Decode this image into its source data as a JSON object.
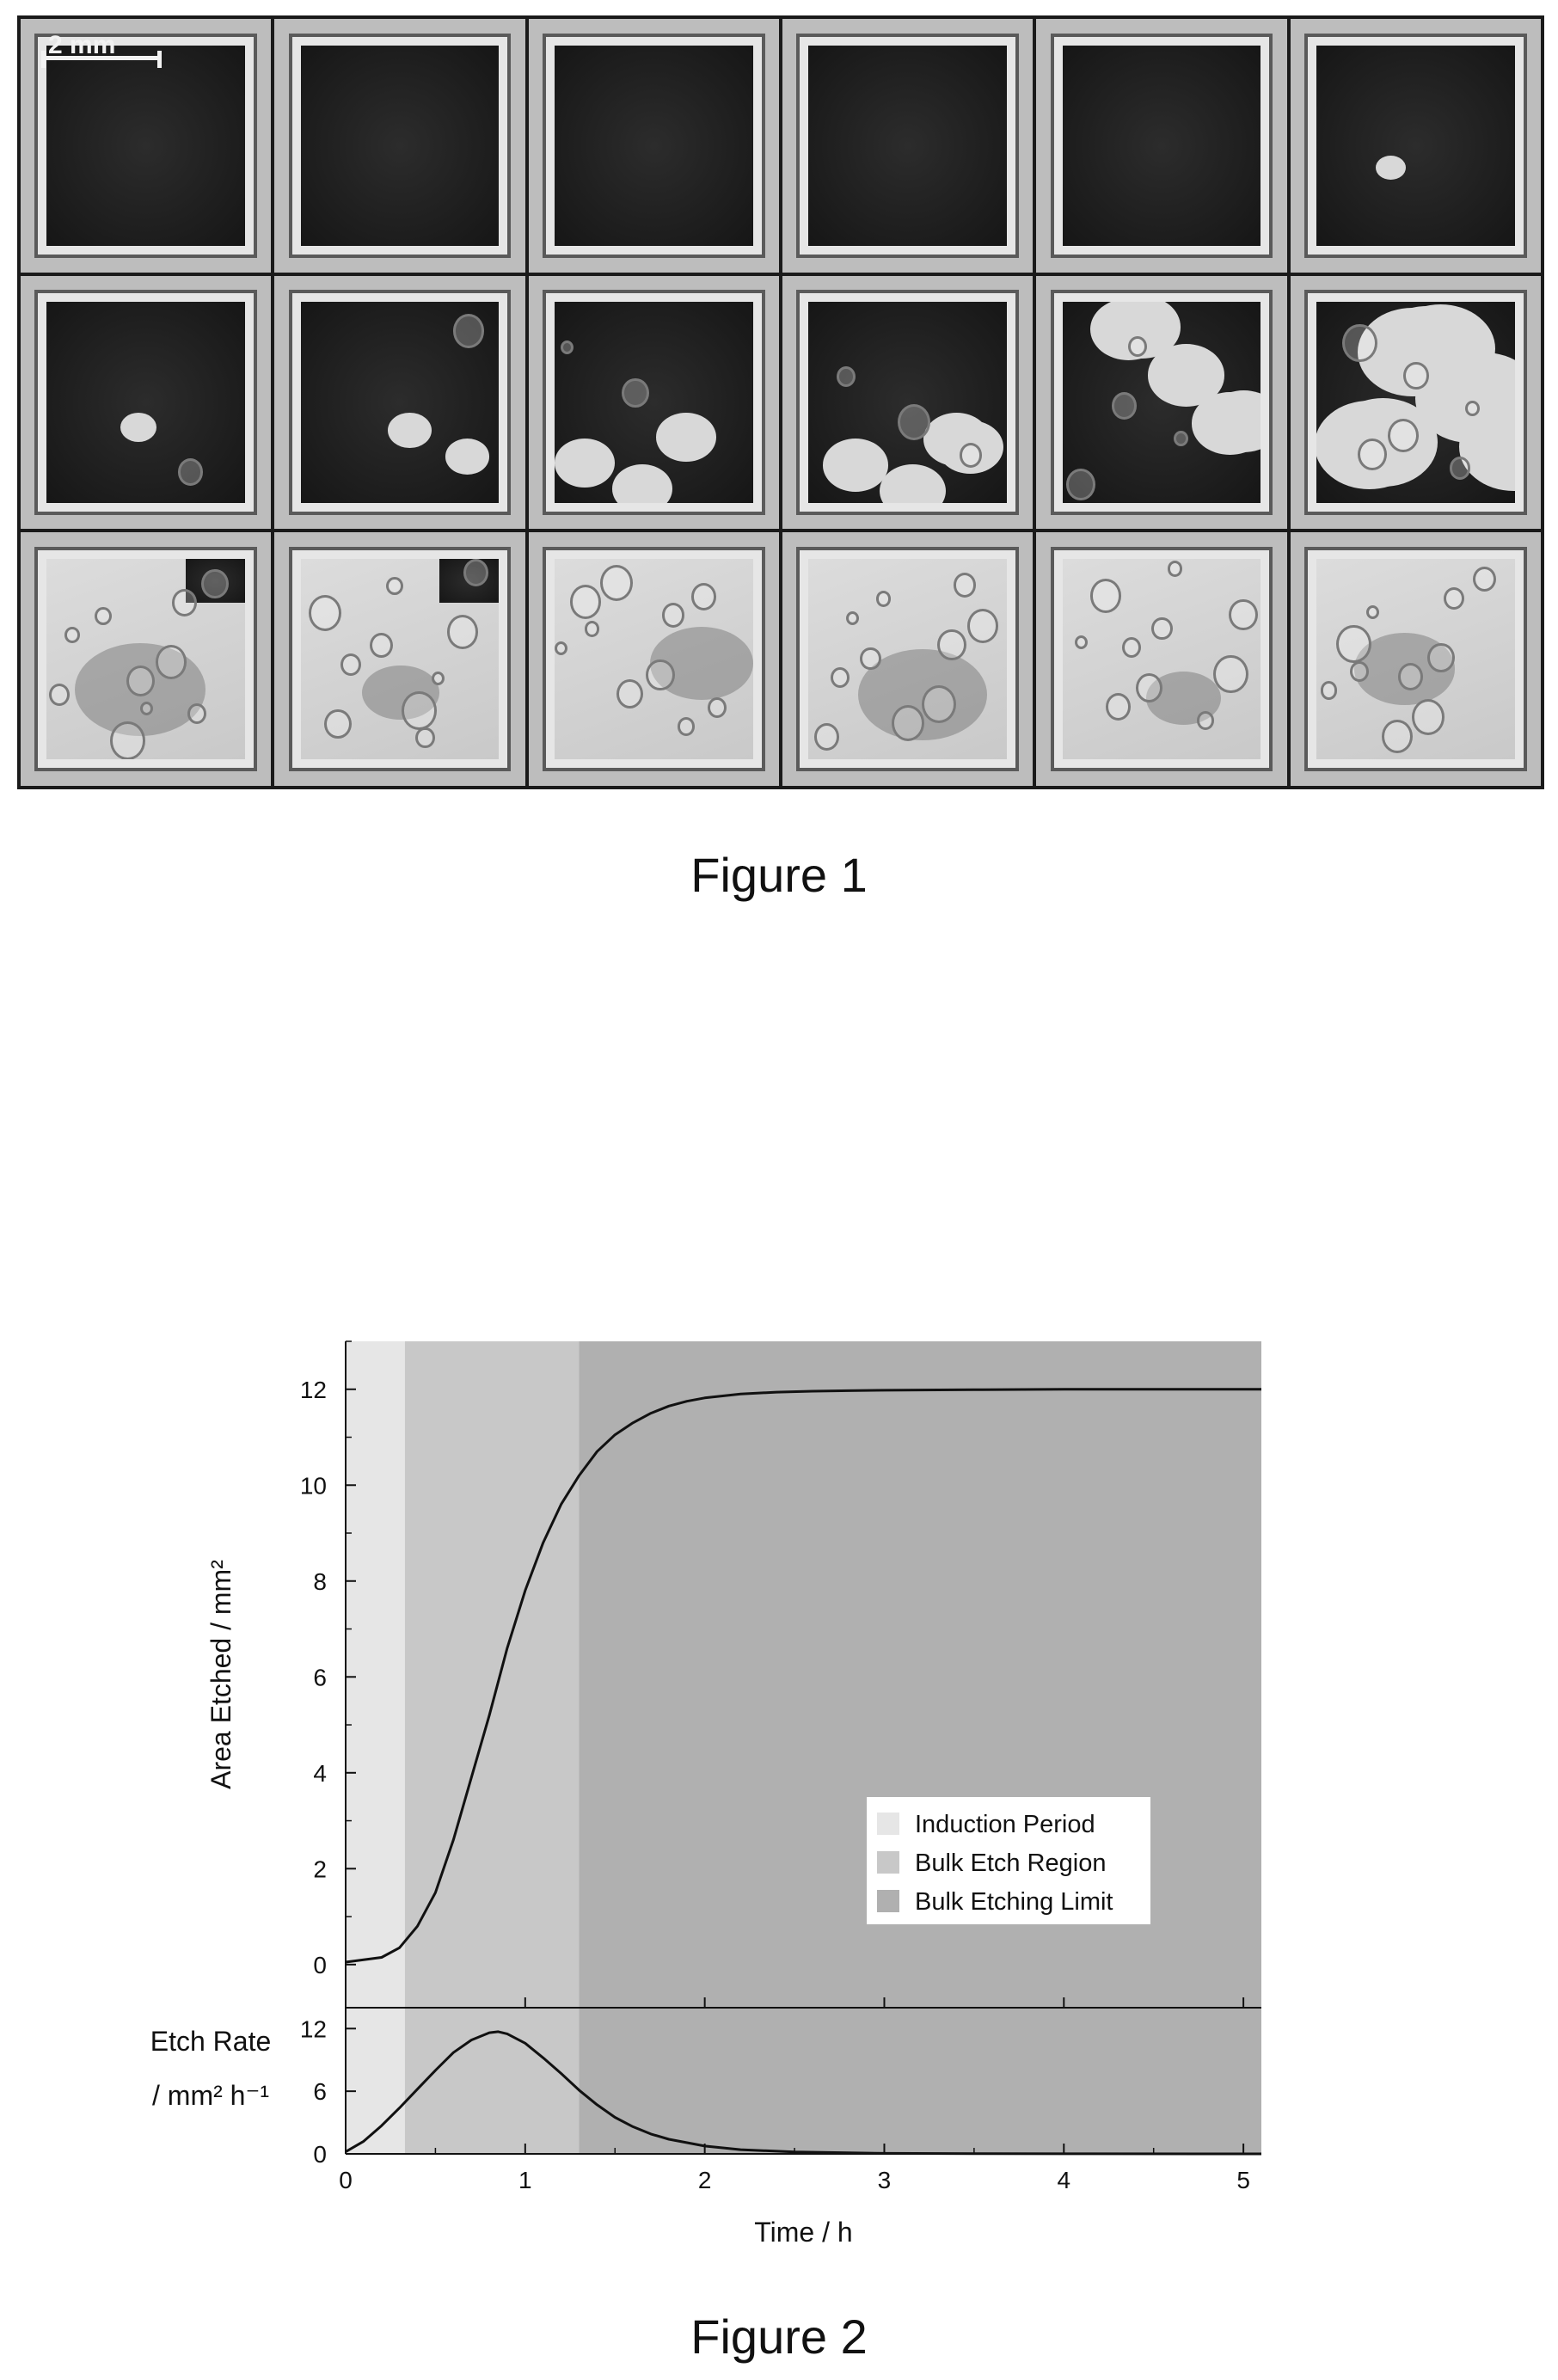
{
  "figure1": {
    "caption": "Figure 1",
    "scale_bar_label": "2 mm",
    "rows": 3,
    "cols": 6,
    "etched_fraction": [
      0,
      0,
      0,
      0,
      0,
      0.02,
      0.08,
      0.15,
      0.3,
      0.35,
      0.45,
      0.75,
      0.92,
      0.97,
      1,
      1,
      1,
      1
    ]
  },
  "figure2": {
    "caption": "Figure 2",
    "chart_data": [
      {
        "type": "line",
        "title": "",
        "xlabel": "Time / h",
        "ylabel": "Area Etched / mm²",
        "xlim": [
          0,
          5.1
        ],
        "ylim": [
          -0.9,
          13
        ],
        "xticks": [
          0,
          1,
          2,
          3,
          4,
          5
        ],
        "yticks": [
          0,
          2,
          4,
          6,
          8,
          10,
          12
        ],
        "grid": false,
        "legend_position": "bottom-right",
        "regions": [
          {
            "name": "Induction Period",
            "x": [
              0,
              0.33
            ],
            "color": "#e6e6e6"
          },
          {
            "name": "Bulk Etch Region",
            "x": [
              0.33,
              1.3
            ],
            "color": "#c8c8c8"
          },
          {
            "name": "Bulk Etching Limit",
            "x": [
              1.3,
              5.1
            ],
            "color": "#b0b0b0"
          }
        ],
        "series": [
          {
            "x": [
              0,
              0.2,
              0.3,
              0.4,
              0.5,
              0.6,
              0.7,
              0.8,
              0.9,
              1.0,
              1.1,
              1.2,
              1.3,
              1.4,
              1.5,
              1.6,
              1.7,
              1.8,
              1.9,
              2.0,
              2.2,
              2.4,
              2.6,
              2.8,
              3.0,
              3.5,
              4.0,
              4.5,
              5.0,
              5.1
            ],
            "y": [
              0.05,
              0.15,
              0.35,
              0.8,
              1.5,
              2.6,
              3.9,
              5.2,
              6.6,
              7.8,
              8.8,
              9.6,
              10.2,
              10.7,
              11.05,
              11.3,
              11.5,
              11.65,
              11.75,
              11.82,
              11.9,
              11.94,
              11.96,
              11.97,
              11.98,
              11.99,
              12.0,
              12.0,
              12.0,
              12.0
            ]
          }
        ]
      },
      {
        "type": "line",
        "title": "",
        "xlabel": "Time / h",
        "ylabel_line1": "Etch Rate",
        "ylabel_line2": "/ mm² h⁻¹",
        "xlim": [
          0,
          5.1
        ],
        "ylim": [
          0,
          14
        ],
        "xticks": [
          0,
          1,
          2,
          3,
          4,
          5
        ],
        "yticks": [
          0,
          6,
          12
        ],
        "grid": false,
        "series": [
          {
            "x": [
              0,
              0.1,
              0.2,
              0.3,
              0.4,
              0.5,
              0.6,
              0.7,
              0.8,
              0.85,
              0.9,
              1.0,
              1.1,
              1.2,
              1.3,
              1.4,
              1.5,
              1.6,
              1.7,
              1.8,
              2.0,
              2.2,
              2.5,
              3.0,
              3.5,
              4.0,
              5.0,
              5.1
            ],
            "y": [
              0.2,
              1.2,
              2.7,
              4.4,
              6.2,
              8.0,
              9.7,
              10.9,
              11.6,
              11.7,
              11.5,
              10.6,
              9.2,
              7.7,
              6.1,
              4.7,
              3.5,
              2.6,
              1.9,
              1.4,
              0.75,
              0.4,
              0.18,
              0.05,
              0.02,
              0.01,
              0,
              0
            ]
          }
        ]
      }
    ]
  }
}
